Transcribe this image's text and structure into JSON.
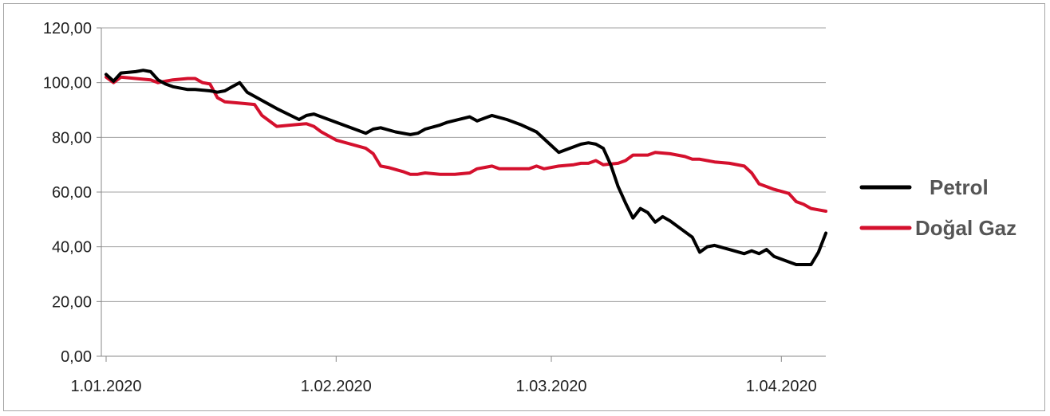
{
  "chart_data": {
    "type": "line",
    "title": "",
    "xlabel": "",
    "ylabel": "",
    "ylim": [
      0,
      120
    ],
    "yticks": [
      0,
      20,
      40,
      60,
      80,
      100,
      120
    ],
    "ytick_labels": [
      "0,00",
      "20,00",
      "40,00",
      "60,00",
      "80,00",
      "100,00",
      "120,00"
    ],
    "xlim": [
      "2020-01-01",
      "2020-04-04"
    ],
    "xticks": [
      "2020-01-01",
      "2020-02-01",
      "2020-03-01",
      "2020-04-01"
    ],
    "xtick_labels": [
      "1.01.2020",
      "1.02.2020",
      "1.03.2020",
      "1.04.2020"
    ],
    "grid": "horizontal",
    "legend_position": "right",
    "series": [
      {
        "name": "Petrol",
        "color": "#000000",
        "points": [
          [
            "2020-01-01",
            103.0
          ],
          [
            "2020-01-02",
            100.5
          ],
          [
            "2020-01-03",
            103.5
          ],
          [
            "2020-01-05",
            104.0
          ],
          [
            "2020-01-06",
            104.5
          ],
          [
            "2020-01-07",
            104.0
          ],
          [
            "2020-01-08",
            101.0
          ],
          [
            "2020-01-09",
            99.5
          ],
          [
            "2020-01-10",
            98.5
          ],
          [
            "2020-01-12",
            97.5
          ],
          [
            "2020-01-13",
            97.5
          ],
          [
            "2020-01-15",
            97.0
          ],
          [
            "2020-01-16",
            96.5
          ],
          [
            "2020-01-17",
            97.0
          ],
          [
            "2020-01-18",
            98.5
          ],
          [
            "2020-01-19",
            100.0
          ],
          [
            "2020-01-20",
            96.5
          ],
          [
            "2020-01-22",
            93.5
          ],
          [
            "2020-01-24",
            90.5
          ],
          [
            "2020-01-27",
            86.5
          ],
          [
            "2020-01-28",
            88.0
          ],
          [
            "2020-01-29",
            88.5
          ],
          [
            "2020-01-31",
            86.5
          ],
          [
            "2020-02-04",
            82.5
          ],
          [
            "2020-02-05",
            81.5
          ],
          [
            "2020-02-06",
            83.0
          ],
          [
            "2020-02-07",
            83.5
          ],
          [
            "2020-02-09",
            82.0
          ],
          [
            "2020-02-11",
            81.0
          ],
          [
            "2020-02-12",
            81.5
          ],
          [
            "2020-02-13",
            83.0
          ],
          [
            "2020-02-15",
            84.5
          ],
          [
            "2020-02-16",
            85.5
          ],
          [
            "2020-02-19",
            87.5
          ],
          [
            "2020-02-20",
            86.0
          ],
          [
            "2020-02-21",
            87.0
          ],
          [
            "2020-02-22",
            88.0
          ],
          [
            "2020-02-24",
            86.5
          ],
          [
            "2020-02-26",
            84.5
          ],
          [
            "2020-02-28",
            82.0
          ],
          [
            "2020-03-01",
            77.0
          ],
          [
            "2020-03-02",
            74.5
          ],
          [
            "2020-03-03",
            75.5
          ],
          [
            "2020-03-05",
            77.5
          ],
          [
            "2020-03-06",
            78.0
          ],
          [
            "2020-03-07",
            77.5
          ],
          [
            "2020-03-08",
            76.0
          ],
          [
            "2020-03-09",
            70.0
          ],
          [
            "2020-03-10",
            62.0
          ],
          [
            "2020-03-11",
            56.0
          ],
          [
            "2020-03-12",
            50.5
          ],
          [
            "2020-03-13",
            54.0
          ],
          [
            "2020-03-14",
            52.5
          ],
          [
            "2020-03-15",
            49.0
          ],
          [
            "2020-03-16",
            51.0
          ],
          [
            "2020-03-17",
            49.5
          ],
          [
            "2020-03-19",
            45.5
          ],
          [
            "2020-03-20",
            43.5
          ],
          [
            "2020-03-21",
            38.0
          ],
          [
            "2020-03-22",
            40.0
          ],
          [
            "2020-03-23",
            40.5
          ],
          [
            "2020-03-25",
            39.0
          ],
          [
            "2020-03-27",
            37.5
          ],
          [
            "2020-03-28",
            38.5
          ],
          [
            "2020-03-29",
            37.5
          ],
          [
            "2020-03-30",
            39.0
          ],
          [
            "2020-03-31",
            36.5
          ],
          [
            "2020-04-02",
            34.5
          ],
          [
            "2020-04-03",
            33.5
          ],
          [
            "2020-04-04",
            33.5
          ],
          [
            "2020-04-05",
            33.5
          ],
          [
            "2020-04-06",
            38.0
          ],
          [
            "2020-04-07",
            45.0
          ]
        ]
      },
      {
        "name": "Doğal Gaz",
        "color": "#d4102d",
        "points": [
          [
            "2020-01-01",
            102.0
          ],
          [
            "2020-01-02",
            100.0
          ],
          [
            "2020-01-03",
            102.0
          ],
          [
            "2020-01-05",
            101.5
          ],
          [
            "2020-01-07",
            101.0
          ],
          [
            "2020-01-08",
            100.0
          ],
          [
            "2020-01-09",
            100.5
          ],
          [
            "2020-01-10",
            101.0
          ],
          [
            "2020-01-12",
            101.5
          ],
          [
            "2020-01-13",
            101.5
          ],
          [
            "2020-01-14",
            100.0
          ],
          [
            "2020-01-15",
            99.5
          ],
          [
            "2020-01-16",
            94.5
          ],
          [
            "2020-01-17",
            93.0
          ],
          [
            "2020-01-19",
            92.5
          ],
          [
            "2020-01-21",
            92.0
          ],
          [
            "2020-01-22",
            88.0
          ],
          [
            "2020-01-24",
            84.0
          ],
          [
            "2020-01-26",
            84.5
          ],
          [
            "2020-01-28",
            85.0
          ],
          [
            "2020-01-29",
            84.0
          ],
          [
            "2020-01-30",
            82.0
          ],
          [
            "2020-02-01",
            79.0
          ],
          [
            "2020-02-03",
            77.5
          ],
          [
            "2020-02-05",
            76.0
          ],
          [
            "2020-02-06",
            74.0
          ],
          [
            "2020-02-07",
            69.5
          ],
          [
            "2020-02-08",
            69.0
          ],
          [
            "2020-02-10",
            67.5
          ],
          [
            "2020-02-11",
            66.5
          ],
          [
            "2020-02-12",
            66.5
          ],
          [
            "2020-02-13",
            67.0
          ],
          [
            "2020-02-15",
            66.5
          ],
          [
            "2020-02-17",
            66.5
          ],
          [
            "2020-02-19",
            67.0
          ],
          [
            "2020-02-20",
            68.5
          ],
          [
            "2020-02-21",
            69.0
          ],
          [
            "2020-02-22",
            69.5
          ],
          [
            "2020-02-23",
            68.5
          ],
          [
            "2020-02-25",
            68.5
          ],
          [
            "2020-02-27",
            68.5
          ],
          [
            "2020-02-28",
            69.5
          ],
          [
            "2020-02-29",
            68.5
          ],
          [
            "2020-03-02",
            69.5
          ],
          [
            "2020-03-04",
            70.0
          ],
          [
            "2020-03-05",
            70.5
          ],
          [
            "2020-03-06",
            70.5
          ],
          [
            "2020-03-07",
            71.5
          ],
          [
            "2020-03-08",
            70.0
          ],
          [
            "2020-03-10",
            70.5
          ],
          [
            "2020-03-11",
            71.5
          ],
          [
            "2020-03-12",
            73.5
          ],
          [
            "2020-03-14",
            73.5
          ],
          [
            "2020-03-15",
            74.5
          ],
          [
            "2020-03-17",
            74.0
          ],
          [
            "2020-03-19",
            73.0
          ],
          [
            "2020-03-20",
            72.0
          ],
          [
            "2020-03-21",
            72.0
          ],
          [
            "2020-03-23",
            71.0
          ],
          [
            "2020-03-25",
            70.5
          ],
          [
            "2020-03-27",
            69.5
          ],
          [
            "2020-03-28",
            67.0
          ],
          [
            "2020-03-29",
            63.0
          ],
          [
            "2020-03-30",
            62.0
          ],
          [
            "2020-03-31",
            61.0
          ],
          [
            "2020-04-02",
            59.5
          ],
          [
            "2020-04-03",
            56.5
          ],
          [
            "2020-04-04",
            55.5
          ],
          [
            "2020-04-05",
            54.0
          ],
          [
            "2020-04-06",
            53.5
          ],
          [
            "2020-04-07",
            53.0
          ]
        ]
      }
    ]
  }
}
